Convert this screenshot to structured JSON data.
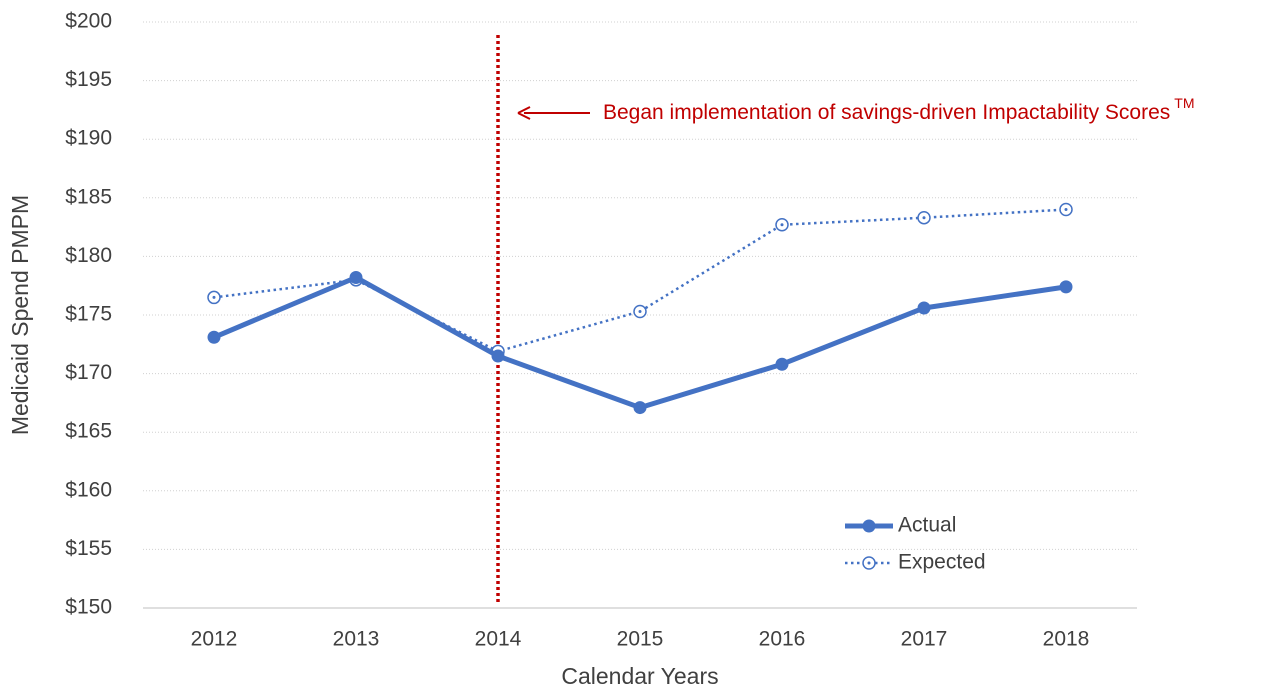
{
  "chart_data": {
    "type": "line",
    "x_label": "Calendar Years",
    "y_label": "Medicaid Spend PMPM",
    "categories": [
      "2012",
      "2013",
      "2014",
      "2015",
      "2016",
      "2017",
      "2018"
    ],
    "series": [
      {
        "name": "Actual",
        "color": "#4472c4",
        "style": "solid",
        "values": [
          173.1,
          178.2,
          171.5,
          167.1,
          170.8,
          175.6,
          177.4
        ]
      },
      {
        "name": "Expected",
        "color": "#4472c4",
        "style": "dotted",
        "values": [
          176.5,
          178.0,
          171.9,
          175.3,
          182.7,
          183.3,
          184.0
        ]
      }
    ],
    "ylim": [
      150,
      200
    ],
    "yticks": [
      {
        "value": 150,
        "label": "$150"
      },
      {
        "value": 155,
        "label": "$155"
      },
      {
        "value": 160,
        "label": "$160"
      },
      {
        "value": 165,
        "label": "$165"
      },
      {
        "value": 170,
        "label": "$170"
      },
      {
        "value": 175,
        "label": "$175"
      },
      {
        "value": 180,
        "label": "$180"
      },
      {
        "value": 185,
        "label": "$185"
      },
      {
        "value": 190,
        "label": "$190"
      },
      {
        "value": 195,
        "label": "$195"
      },
      {
        "value": 200,
        "label": "$200"
      }
    ],
    "grid": true,
    "legend": "lower right",
    "annotation": {
      "text": "Began implementation of savings-driven Impactability Scores",
      "superscript": "TM",
      "category": "2014",
      "color": "#c00000"
    }
  }
}
